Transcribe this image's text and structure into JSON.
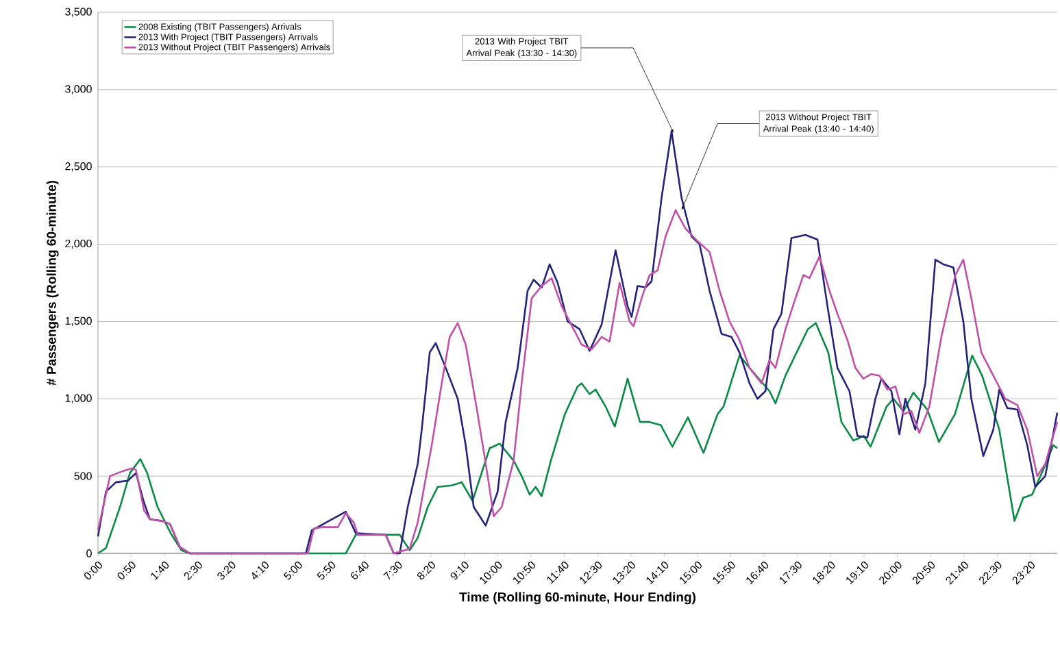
{
  "chart_data": {
    "type": "line",
    "xlabel": "Time (Rolling 60-minute, Hour Ending)",
    "ylabel": "# Passengers (Rolling 60-minute)",
    "xlim": [
      0,
      24
    ],
    "ylim": [
      0,
      3500
    ],
    "xticks": [
      {
        "value": 0,
        "label": "0:00"
      },
      {
        "value": 0.8333,
        "label": "0:50"
      },
      {
        "value": 1.6667,
        "label": "1:40"
      },
      {
        "value": 2.5,
        "label": "2:30"
      },
      {
        "value": 3.3333,
        "label": "3:20"
      },
      {
        "value": 4.1667,
        "label": "4:10"
      },
      {
        "value": 5,
        "label": "5:00"
      },
      {
        "value": 5.8333,
        "label": "5:50"
      },
      {
        "value": 6.6667,
        "label": "6:40"
      },
      {
        "value": 7.5,
        "label": "7:30"
      },
      {
        "value": 8.3333,
        "label": "8:20"
      },
      {
        "value": 9.1667,
        "label": "9:10"
      },
      {
        "value": 10,
        "label": "10:00"
      },
      {
        "value": 10.8333,
        "label": "10:50"
      },
      {
        "value": 11.6667,
        "label": "11:40"
      },
      {
        "value": 12.5,
        "label": "12:30"
      },
      {
        "value": 13.3333,
        "label": "13:20"
      },
      {
        "value": 14.1667,
        "label": "14:10"
      },
      {
        "value": 15,
        "label": "15:00"
      },
      {
        "value": 15.8333,
        "label": "15:50"
      },
      {
        "value": 16.6667,
        "label": "16:40"
      },
      {
        "value": 17.5,
        "label": "17:30"
      },
      {
        "value": 18.3333,
        "label": "18:20"
      },
      {
        "value": 19.1667,
        "label": "19:10"
      },
      {
        "value": 20,
        "label": "20:00"
      },
      {
        "value": 20.8333,
        "label": "20:50"
      },
      {
        "value": 21.6667,
        "label": "21:40"
      },
      {
        "value": 22.5,
        "label": "22:30"
      },
      {
        "value": 23.3333,
        "label": "23:20"
      }
    ],
    "yticks": [
      0,
      {
        "value": 500,
        "label": "500"
      },
      {
        "value": 1000,
        "label": "1,000"
      },
      {
        "value": 1500,
        "label": "1,500"
      },
      {
        "value": 2000,
        "label": "2,000"
      },
      {
        "value": 2500,
        "label": "2,500"
      },
      {
        "value": 3000,
        "label": "3,000"
      },
      {
        "value": 3500,
        "label": "3,500"
      }
    ],
    "grid": "y",
    "legend": "top left",
    "marker": "none",
    "line_style": "solid",
    "series": [
      {
        "name": "2008 Existing (TBIT Passengers) Arrivals",
        "color": "#0a8a45",
        "x": [
          0,
          0.2,
          0.55,
          0.8,
          1.06,
          1.23,
          1.49,
          1.83,
          2.09,
          2.3,
          6.2,
          6.45,
          7.55,
          7.8,
          8.0,
          8.25,
          8.5,
          8.85,
          9.1,
          9.37,
          9.8,
          10.05,
          10.4,
          10.6,
          10.8,
          10.95,
          11.1,
          11.33,
          11.68,
          12.0,
          12.1,
          12.3,
          12.45,
          12.7,
          12.93,
          13.25,
          13.56,
          13.8,
          14.08,
          14.37,
          14.76,
          15.15,
          15.5,
          15.65,
          16.05,
          16.3,
          16.8,
          16.95,
          17.2,
          17.76,
          17.96,
          18.27,
          18.6,
          18.9,
          19.16,
          19.33,
          19.73,
          19.9,
          20.15,
          20.4,
          20.75,
          21.04,
          21.44,
          21.87,
          22.12,
          22.55,
          22.93,
          23.15,
          23.37,
          23.75,
          23.9,
          24
        ],
        "values": [
          0,
          35,
          300,
          520,
          610,
          520,
          300,
          125,
          20,
          0,
          0,
          120,
          120,
          20,
          100,
          300,
          430,
          440,
          460,
          340,
          680,
          710,
          600,
          500,
          380,
          430,
          370,
          600,
          900,
          1080,
          1100,
          1030,
          1060,
          950,
          820,
          1130,
          850,
          850,
          830,
          690,
          880,
          650,
          900,
          950,
          1280,
          1200,
          1050,
          970,
          1150,
          1450,
          1490,
          1300,
          850,
          730,
          760,
          690,
          950,
          1000,
          920,
          1040,
          930,
          720,
          900,
          1280,
          1150,
          800,
          210,
          360,
          380,
          600,
          700,
          680
        ]
      },
      {
        "name": "2013 With Project (TBIT Passengers) Arrivals",
        "color": "#23237a",
        "x": [
          0,
          0.2,
          0.45,
          0.75,
          0.95,
          1.15,
          1.3,
          1.6,
          1.8,
          2.05,
          2.3,
          5.2,
          5.35,
          5.5,
          6.0,
          6.2,
          6.45,
          7.2,
          7.4,
          7.55,
          7.75,
          8.0,
          8.1,
          8.3,
          8.45,
          8.7,
          9.0,
          9.2,
          9.4,
          9.7,
          10.0,
          10.2,
          10.5,
          10.75,
          10.9,
          11.1,
          11.3,
          11.5,
          11.75,
          12.05,
          12.3,
          12.6,
          12.95,
          13.25,
          13.35,
          13.5,
          13.7,
          13.85,
          14.1,
          14.35,
          14.6,
          14.85,
          15.05,
          15.3,
          15.6,
          15.85,
          16.05,
          16.3,
          16.5,
          16.7,
          16.9,
          17.1,
          17.35,
          17.7,
          18.0,
          18.25,
          18.5,
          18.8,
          19.0,
          19.25,
          19.45,
          19.6,
          19.85,
          20.05,
          20.2,
          20.45,
          20.7,
          20.95,
          21.15,
          21.4,
          21.65,
          21.85,
          22.15,
          22.4,
          22.55,
          22.75,
          23.0,
          23.25,
          23.45,
          23.7,
          24
        ],
        "values": [
          110,
          400,
          460,
          470,
          520,
          330,
          220,
          210,
          190,
          40,
          0,
          0,
          150,
          170,
          null,
          270,
          130,
          120,
          0,
          0,
          300,
          580,
          800,
          1300,
          1360,
          1200,
          1000,
          700,
          300,
          180,
          400,
          850,
          1200,
          1700,
          1770,
          1720,
          1870,
          1750,
          1500,
          1450,
          1310,
          1480,
          1960,
          1600,
          1530,
          1730,
          1720,
          1760,
          2300,
          2730,
          2300,
          2050,
          2000,
          1700,
          1420,
          1400,
          1300,
          1100,
          1000,
          1050,
          1450,
          1550,
          2040,
          2060,
          2030,
          1600,
          1200,
          1050,
          760,
          750,
          1000,
          1130,
          1050,
          770,
          1000,
          800,
          1100,
          1900,
          1870,
          1850,
          1500,
          1000,
          630,
          800,
          1060,
          940,
          930,
          700,
          430,
          500,
          910
        ]
      },
      {
        "name": "2013 Without Project (TBIT Passengers) Arrivals",
        "color": "#c050a8",
        "x": [
          0,
          0.3,
          0.6,
          0.85,
          0.95,
          1.15,
          1.3,
          1.6,
          1.8,
          2.05,
          2.3,
          5.25,
          5.4,
          5.6,
          6.0,
          6.2,
          6.4,
          6.5,
          7.2,
          7.4,
          7.8,
          8.0,
          8.35,
          8.6,
          8.8,
          9.0,
          9.2,
          9.5,
          9.75,
          9.9,
          10.1,
          10.4,
          10.6,
          10.85,
          11.1,
          11.35,
          11.6,
          11.9,
          12.1,
          12.35,
          12.6,
          12.8,
          13.05,
          13.3,
          13.4,
          13.6,
          13.8,
          14.0,
          14.2,
          14.45,
          14.7,
          15.0,
          15.3,
          15.55,
          15.8,
          16.05,
          16.3,
          16.6,
          16.8,
          16.95,
          17.2,
          17.45,
          17.65,
          17.8,
          18.05,
          18.3,
          18.5,
          18.75,
          18.95,
          19.15,
          19.35,
          19.55,
          19.75,
          19.95,
          20.15,
          20.35,
          20.55,
          20.8,
          21.1,
          21.45,
          21.65,
          21.85,
          22.1,
          22.4,
          22.7,
          23.0,
          23.25,
          23.5,
          23.7,
          24
        ],
        "values": [
          150,
          500,
          530,
          550,
          540,
          280,
          220,
          210,
          190,
          40,
          0,
          0,
          160,
          170,
          170,
          260,
          200,
          120,
          120,
          0,
          30,
          200,
          700,
          1100,
          1400,
          1490,
          1350,
          900,
          500,
          240,
          300,
          600,
          1100,
          1650,
          1730,
          1780,
          1600,
          1450,
          1350,
          1320,
          1400,
          1370,
          1750,
          1500,
          1470,
          1650,
          1800,
          1830,
          2050,
          2220,
          2100,
          2020,
          1950,
          1700,
          1500,
          1380,
          1200,
          1100,
          1250,
          1200,
          1450,
          1650,
          1800,
          1780,
          1920,
          1700,
          1550,
          1380,
          1200,
          1130,
          1160,
          1150,
          1060,
          1080,
          900,
          920,
          780,
          950,
          1400,
          1800,
          1900,
          1650,
          1300,
          1150,
          1000,
          960,
          800,
          500,
          580,
          850
        ]
      }
    ],
    "annotations": [
      {
        "text": "2013 With Project TBIT Arrival Peak (13:30 - 14:30)",
        "x": 14.4,
        "y": 2720
      },
      {
        "text": "2013 Without Project TBIT Arrival Peak (13:40 - 14:40)",
        "x": 14.6,
        "y": 2220
      }
    ]
  }
}
